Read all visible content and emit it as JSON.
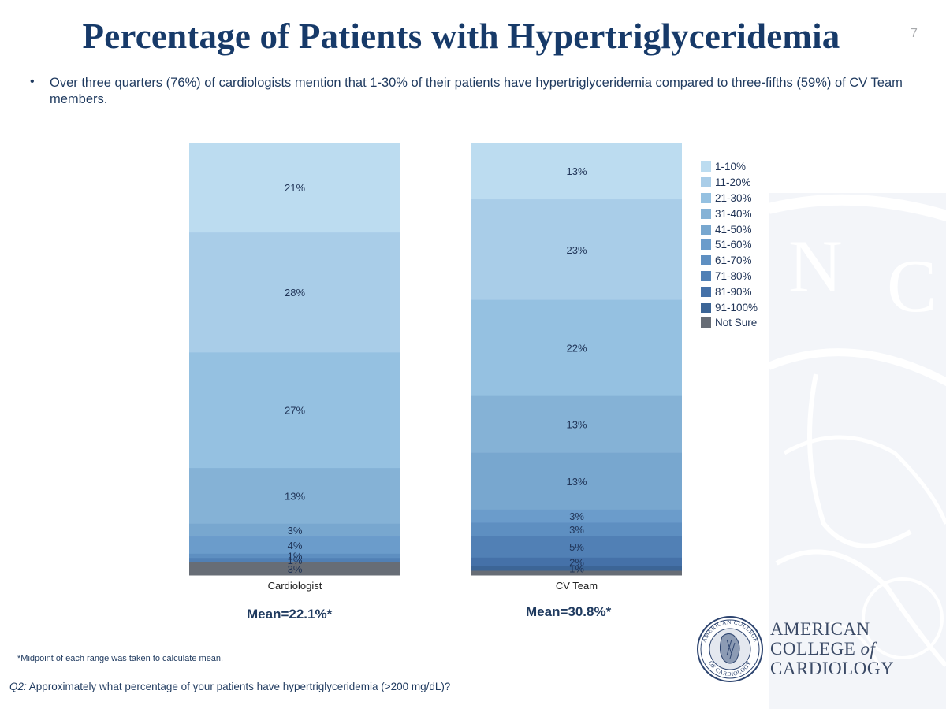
{
  "slide": {
    "title": "Percentage of Patients with Hypertriglyceridemia",
    "page_number": "7",
    "bullet_marker": "•",
    "bullet": "Over three quarters (76%) of cardiologists mention that 1-30% of their patients have hypertriglyceridemia compared to three-fifths (59%) of CV Team members.",
    "means": [
      {
        "label": "Mean=22.1%*"
      },
      {
        "label": "Mean=30.8%*"
      }
    ],
    "footnote": "*Midpoint of each range was taken to calculate mean.",
    "question_prefix": "Q2:",
    "question_text": " Approximately what percentage of your patients have hypertriglyceridemia (>200 mg/dL)?",
    "logo": {
      "line1": "AMERICAN",
      "line2": "COLLEGE",
      "line2_of": "of",
      "line3": "CARDIOLOGY",
      "seal_text_top": "AMERICAN COLLEGE",
      "seal_text_bottom": "OF CARDIOLOGY"
    },
    "watermark_letters": [
      "N",
      "C"
    ]
  },
  "chart_data": {
    "type": "bar",
    "stacked": true,
    "percent_stacked": true,
    "title": "",
    "xlabel": "",
    "ylabel": "",
    "ylim": [
      0,
      100
    ],
    "grid": false,
    "legend_position": "right",
    "categories": [
      "Cardiologist",
      "CV Team"
    ],
    "series": [
      {
        "name": "1-10%",
        "color": "#bcdcf0",
        "values": [
          21,
          13
        ],
        "labels": [
          "21%",
          "13%"
        ]
      },
      {
        "name": "11-20%",
        "color": "#a9cde8",
        "values": [
          28,
          23
        ],
        "labels": [
          "28%",
          "23%"
        ]
      },
      {
        "name": "21-30%",
        "color": "#95c1e1",
        "values": [
          27,
          22
        ],
        "labels": [
          "27%",
          "22%"
        ]
      },
      {
        "name": "31-40%",
        "color": "#85b2d6",
        "values": [
          13,
          13
        ],
        "labels": [
          "13%",
          "13%"
        ]
      },
      {
        "name": "41-50%",
        "color": "#78a7cf",
        "values": [
          3,
          13
        ],
        "labels": [
          "3%",
          "13%"
        ]
      },
      {
        "name": "51-60%",
        "color": "#6b9ccb",
        "values": [
          4,
          3
        ],
        "labels": [
          "4%",
          "3%"
        ]
      },
      {
        "name": "61-70%",
        "color": "#5e8fc1",
        "values": [
          1,
          3
        ],
        "labels": [
          "1%",
          "3%"
        ]
      },
      {
        "name": "71-80%",
        "color": "#5180b5",
        "values": [
          1,
          5
        ],
        "labels": [
          "1%",
          "5%"
        ]
      },
      {
        "name": "81-90%",
        "color": "#4571a8",
        "values": [
          0,
          2
        ],
        "labels": [
          "",
          "2%"
        ]
      },
      {
        "name": "91-100%",
        "color": "#3c6596",
        "values": [
          0,
          1
        ],
        "labels": [
          "",
          "1%"
        ]
      },
      {
        "name": "Not Sure",
        "color": "#676d76",
        "values": [
          3,
          1
        ],
        "labels": [
          "3%",
          ""
        ]
      }
    ]
  }
}
